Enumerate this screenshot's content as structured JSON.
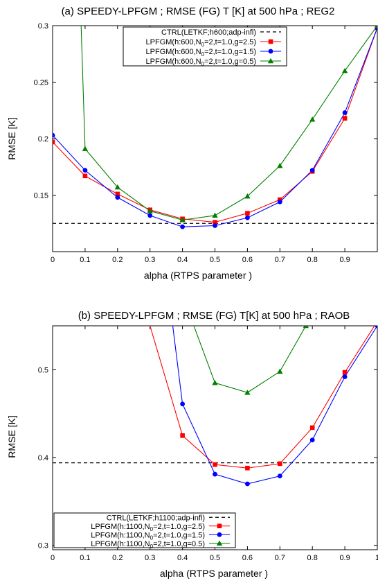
{
  "chart_data": [
    {
      "type": "line",
      "title": "(a) SPEEDY-LPFGM ; RMSE (FG) T [K] at 500 hPa ; REG2",
      "xlabel": "alpha (RTPS parameter )",
      "ylabel": "RMSE [K]",
      "xlim": [
        0,
        1.0
      ],
      "ylim": [
        0.1,
        0.3
      ],
      "xticks": [
        0,
        0.1,
        0.2,
        0.3,
        0.4,
        0.5,
        0.6,
        0.7,
        0.8,
        0.9
      ],
      "xtick_labels": [
        "0",
        "0.1",
        "0.2",
        "0.3",
        "0.4",
        "0.5",
        "0.6",
        "0.7",
        "0.8",
        "0.9"
      ],
      "yticks": [
        0.15,
        0.2,
        0.25,
        0.3
      ],
      "ytick_labels": [
        "0.15",
        "0.2",
        "0.25",
        "0.3"
      ],
      "grid": false,
      "legend_position": "top-right",
      "reference": {
        "name": "CTRL(LETKF;h600;adp-infl)",
        "value": 0.125,
        "color": "#000000",
        "style": "dashed"
      },
      "series": [
        {
          "name_main": "LPFGM(h:600,N",
          "name_sub": "0",
          "name_rest": "=2,t=1.0,g=2.5)",
          "color": "#ff0000",
          "marker": "square",
          "x": [
            0,
            0.1,
            0.2,
            0.3,
            0.4,
            0.5,
            0.6,
            0.7,
            0.8,
            0.9,
            1.0
          ],
          "y": [
            0.197,
            0.167,
            0.151,
            0.137,
            0.129,
            0.126,
            0.134,
            0.146,
            0.171,
            0.218,
            0.298
          ]
        },
        {
          "name_main": "LPFGM(h:600,N",
          "name_sub": "0",
          "name_rest": "=2,t=1.0,g=1.5)",
          "color": "#0000ff",
          "marker": "circle",
          "x": [
            0,
            0.1,
            0.2,
            0.3,
            0.4,
            0.5,
            0.6,
            0.7,
            0.8,
            0.9,
            1.0
          ],
          "y": [
            0.203,
            0.172,
            0.148,
            0.132,
            0.122,
            0.123,
            0.13,
            0.144,
            0.172,
            0.223,
            0.298
          ]
        },
        {
          "name_main": "LPFGM(h:600,N",
          "name_sub": "0",
          "name_rest": "=2,t=1.0,g=0.5)",
          "color": "#008000",
          "marker": "triangle",
          "x": [
            0.1,
            0.2,
            0.3,
            0.4,
            0.5,
            0.6,
            0.7,
            0.8,
            0.9,
            1.0
          ],
          "y": [
            0.191,
            0.157,
            0.136,
            0.128,
            0.132,
            0.149,
            0.176,
            0.217,
            0.26,
            0.3
          ],
          "extends_above_top_from_x": 0.085
        }
      ]
    },
    {
      "type": "line",
      "title": "(b) SPEEDY-LPFGM ; RMSE (FG) T[K] at 500 hPa ; RAOB",
      "xlabel": "alpha (RTPS parameter )",
      "ylabel": "RMSE [K]",
      "xlim": [
        0,
        1.0
      ],
      "ylim": [
        0.295,
        0.55
      ],
      "xticks": [
        0,
        0.1,
        0.2,
        0.3,
        0.4,
        0.5,
        0.6,
        0.7,
        0.8,
        0.9,
        1.0
      ],
      "xtick_labels": [
        "0",
        "0.1",
        "0.2",
        "0.3",
        "0.4",
        "0.5",
        "0.6",
        "0.7",
        "0.8",
        "0.9",
        "1"
      ],
      "yticks": [
        0.3,
        0.4,
        0.5
      ],
      "ytick_labels": [
        "0.3",
        "0.4",
        "0.5"
      ],
      "grid": false,
      "legend_position": "bottom-left",
      "reference": {
        "name": "CTRL(LETKF;h1100;adp-infl)",
        "value": 0.394,
        "color": "#000000",
        "style": "dashed"
      },
      "series": [
        {
          "name_main": "LPFGM(h:1100,N",
          "name_sub": "0",
          "name_rest": "=2,t=1.0,g=2.5)",
          "color": "#ff0000",
          "marker": "square",
          "x": [
            0.3,
            0.4,
            0.5,
            0.6,
            0.7,
            0.8,
            0.9,
            1.0
          ],
          "y": [
            0.55,
            0.425,
            0.392,
            0.388,
            0.393,
            0.434,
            0.497,
            0.555
          ],
          "marker_from_x": 0.4
        },
        {
          "name_main": "LPFGM(h:1100,N",
          "name_sub": "0",
          "name_rest": "=2,t=1.0,g=1.5)",
          "color": "#0000ff",
          "marker": "circle",
          "x": [
            0.37,
            0.4,
            0.5,
            0.6,
            0.7,
            0.8,
            0.9,
            1.0
          ],
          "y": [
            0.55,
            0.461,
            0.381,
            0.37,
            0.379,
            0.42,
            0.492,
            0.55
          ],
          "marker_from_x": 0.4
        },
        {
          "name_main": "LPFGM(h:1100,N",
          "name_sub": "0",
          "name_rest": "=2,t=1.0,g=0.5)",
          "color": "#008000",
          "marker": "triangle",
          "x": [
            0.435,
            0.5,
            0.6,
            0.7,
            0.78
          ],
          "y": [
            0.55,
            0.485,
            0.474,
            0.498,
            0.55
          ],
          "marker_from_x": 0.5
        }
      ]
    }
  ]
}
